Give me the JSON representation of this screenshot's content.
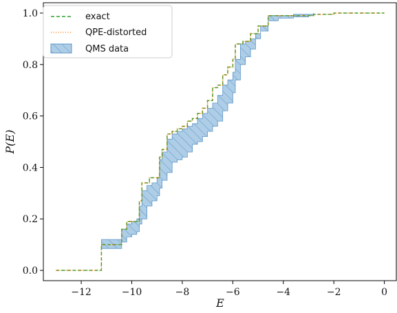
{
  "chart_data": {
    "type": "line",
    "xlabel": "E",
    "ylabel": "P(E)",
    "xlim": [
      -13.5,
      0.5
    ],
    "ylim": [
      -0.04,
      1.04
    ],
    "xticks": [
      -12,
      -10,
      -8,
      -6,
      -4,
      -2,
      0
    ],
    "xtick_labels": [
      "−12",
      "−10",
      "−8",
      "−6",
      "−4",
      "−2",
      "0"
    ],
    "yticks": [
      0.0,
      0.2,
      0.4,
      0.6,
      0.8,
      1.0
    ],
    "ytick_labels": [
      "0.0",
      "0.2",
      "0.4",
      "0.6",
      "0.8",
      "1.0"
    ],
    "legend_position": "top-left",
    "series": [
      {
        "name": "exact",
        "style": "dashed",
        "color": "#2ca02c",
        "x": [
          -13.0,
          -11.2,
          -11.2,
          -10.4,
          -10.4,
          -10.2,
          -10.2,
          -9.7,
          -9.7,
          -9.6,
          -9.6,
          -9.3,
          -9.3,
          -8.9,
          -8.9,
          -8.8,
          -8.8,
          -8.6,
          -8.6,
          -8.4,
          -8.4,
          -8.2,
          -8.2,
          -8.0,
          -8.0,
          -7.8,
          -7.8,
          -7.6,
          -7.6,
          -7.4,
          -7.4,
          -7.2,
          -7.2,
          -7.0,
          -7.0,
          -6.8,
          -6.8,
          -6.6,
          -6.6,
          -6.4,
          -6.4,
          -6.2,
          -6.2,
          -6.0,
          -6.0,
          -5.9,
          -5.9,
          -5.6,
          -5.6,
          -5.3,
          -5.3,
          -5.0,
          -5.0,
          -4.6,
          -4.6,
          -2.8,
          -2.8,
          -2.0,
          -2.0,
          0.0
        ],
        "y": [
          0.0,
          0.0,
          0.1,
          0.1,
          0.16,
          0.16,
          0.19,
          0.19,
          0.27,
          0.27,
          0.34,
          0.34,
          0.36,
          0.36,
          0.44,
          0.44,
          0.47,
          0.47,
          0.53,
          0.53,
          0.54,
          0.54,
          0.55,
          0.55,
          0.56,
          0.56,
          0.58,
          0.58,
          0.59,
          0.59,
          0.61,
          0.61,
          0.63,
          0.63,
          0.66,
          0.66,
          0.71,
          0.71,
          0.72,
          0.72,
          0.76,
          0.76,
          0.79,
          0.79,
          0.82,
          0.82,
          0.88,
          0.88,
          0.89,
          0.89,
          0.92,
          0.92,
          0.95,
          0.95,
          0.99,
          0.99,
          0.995,
          0.995,
          1.0,
          1.0
        ]
      },
      {
        "name": "QPE-distorted",
        "style": "dotted",
        "color": "#ff7f0e",
        "x": [
          -13.0,
          -11.2,
          -11.2,
          -10.4,
          -10.4,
          -10.2,
          -10.2,
          -9.7,
          -9.7,
          -9.6,
          -9.6,
          -9.3,
          -9.3,
          -8.9,
          -8.9,
          -8.8,
          -8.8,
          -8.6,
          -8.6,
          -8.4,
          -8.4,
          -8.2,
          -8.2,
          -8.0,
          -8.0,
          -7.8,
          -7.8,
          -7.6,
          -7.6,
          -7.4,
          -7.4,
          -7.2,
          -7.2,
          -7.0,
          -7.0,
          -6.8,
          -6.8,
          -6.6,
          -6.6,
          -6.4,
          -6.4,
          -6.2,
          -6.2,
          -6.0,
          -6.0,
          -5.9,
          -5.9,
          -5.6,
          -5.6,
          -5.3,
          -5.3,
          -5.0,
          -5.0,
          -4.6,
          -4.6,
          -2.8,
          -2.8,
          -2.0,
          -2.0,
          0.0
        ],
        "y": [
          0.0,
          0.0,
          0.1,
          0.1,
          0.16,
          0.16,
          0.19,
          0.19,
          0.27,
          0.27,
          0.34,
          0.34,
          0.36,
          0.36,
          0.44,
          0.44,
          0.47,
          0.47,
          0.53,
          0.53,
          0.54,
          0.54,
          0.55,
          0.55,
          0.56,
          0.56,
          0.58,
          0.58,
          0.59,
          0.59,
          0.61,
          0.61,
          0.63,
          0.63,
          0.66,
          0.66,
          0.71,
          0.71,
          0.72,
          0.72,
          0.76,
          0.76,
          0.79,
          0.79,
          0.82,
          0.82,
          0.88,
          0.88,
          0.89,
          0.89,
          0.92,
          0.92,
          0.95,
          0.95,
          0.99,
          0.99,
          0.995,
          0.995,
          1.0,
          1.0
        ]
      },
      {
        "name": "QMS data",
        "style": "band",
        "color": "#1f77b4",
        "fill": "#aecde6",
        "x": [
          -11.2,
          -10.6,
          -10.4,
          -10.2,
          -10.0,
          -9.8,
          -9.7,
          -9.6,
          -9.4,
          -9.2,
          -9.0,
          -8.9,
          -8.8,
          -8.6,
          -8.4,
          -8.2,
          -8.0,
          -7.8,
          -7.6,
          -7.4,
          -7.2,
          -7.0,
          -6.8,
          -6.6,
          -6.4,
          -6.2,
          -6.0,
          -5.9,
          -5.7,
          -5.5,
          -5.3,
          -5.1,
          -4.9,
          -4.6,
          -4.2,
          -3.6,
          -3.0,
          -2.8
        ],
        "y_lower": [
          0.085,
          0.085,
          0.11,
          0.13,
          0.14,
          0.15,
          0.18,
          0.2,
          0.25,
          0.27,
          0.29,
          0.32,
          0.35,
          0.38,
          0.42,
          0.43,
          0.44,
          0.46,
          0.49,
          0.5,
          0.52,
          0.54,
          0.56,
          0.58,
          0.62,
          0.65,
          0.69,
          0.74,
          0.8,
          0.83,
          0.86,
          0.9,
          0.93,
          0.97,
          0.98,
          0.985,
          0.99,
          0.995
        ],
        "y_upper": [
          0.12,
          0.12,
          0.16,
          0.18,
          0.19,
          0.2,
          0.25,
          0.31,
          0.33,
          0.34,
          0.36,
          0.43,
          0.46,
          0.51,
          0.53,
          0.54,
          0.55,
          0.56,
          0.57,
          0.59,
          0.61,
          0.63,
          0.65,
          0.68,
          0.72,
          0.74,
          0.77,
          0.82,
          0.88,
          0.89,
          0.9,
          0.92,
          0.95,
          0.99,
          0.99,
          0.995,
          0.995,
          1.0
        ]
      }
    ]
  }
}
